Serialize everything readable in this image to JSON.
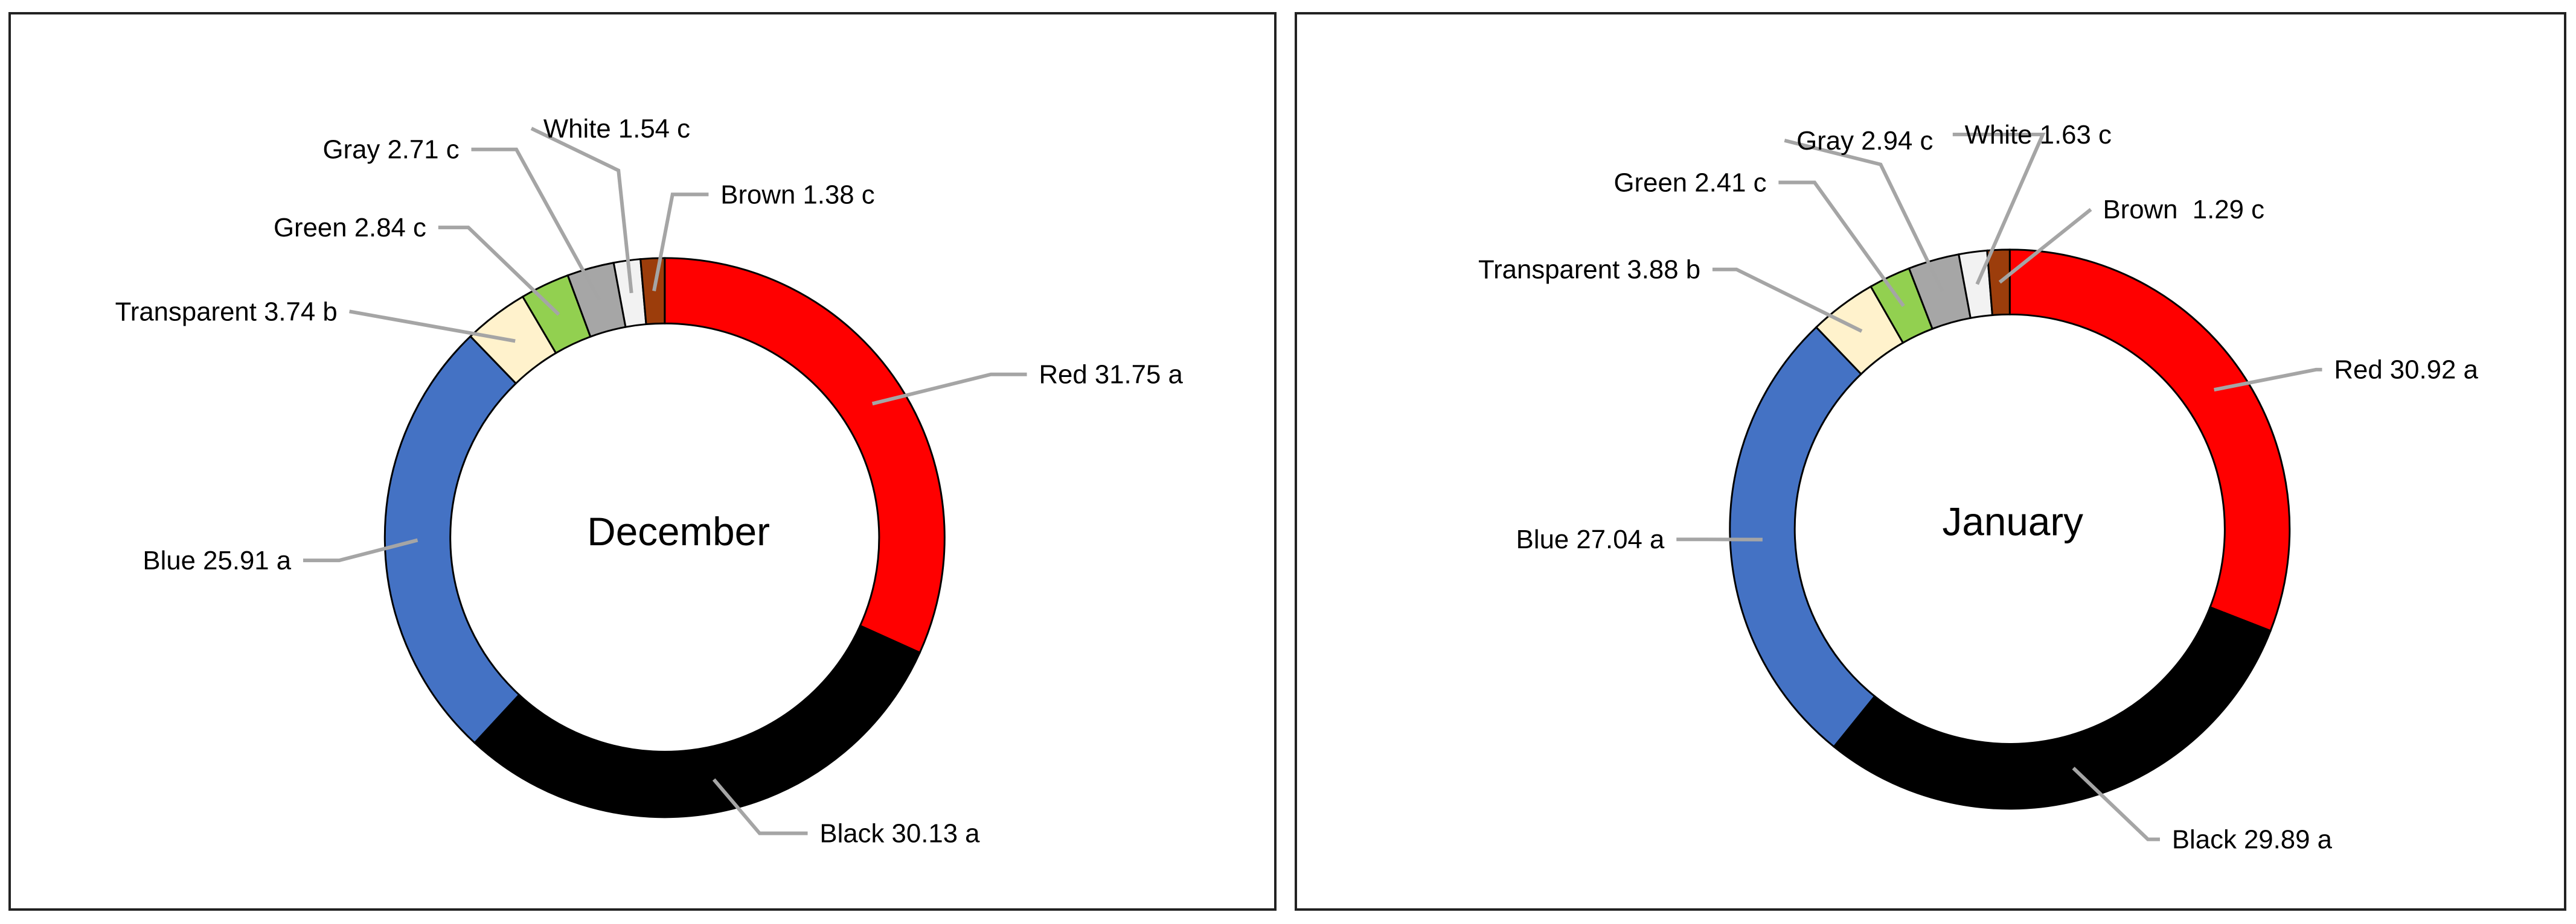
{
  "chart_data": [
    {
      "type": "donut",
      "title": "December",
      "slices": [
        {
          "name": "Red",
          "value": 31.75,
          "letter": "a",
          "label": "Red 31.75 a",
          "color": "#ff0000"
        },
        {
          "name": "Black",
          "value": 30.13,
          "letter": "a",
          "label": "Black 30.13 a",
          "color": "#000000"
        },
        {
          "name": "Blue",
          "value": 25.91,
          "letter": "a",
          "label": "Blue 25.91 a",
          "color": "#4472c4"
        },
        {
          "name": "Transparent",
          "value": 3.74,
          "letter": "b",
          "label": "Transparent 3.74 b",
          "color": "#fff2cc"
        },
        {
          "name": "Green",
          "value": 2.84,
          "letter": "c",
          "label": "Green 2.84 c",
          "color": "#92d050"
        },
        {
          "name": "Gray",
          "value": 2.71,
          "letter": "c",
          "label": "Gray 2.71 c",
          "color": "#a6a6a6"
        },
        {
          "name": "White",
          "value": 1.54,
          "letter": "c",
          "label": "White 1.54 c",
          "color": "#f2f2f2"
        },
        {
          "name": "Brown",
          "value": 1.38,
          "letter": "c",
          "label": "Brown 1.38 c",
          "color": "#9c3d0b"
        }
      ]
    },
    {
      "type": "donut",
      "title": "January",
      "slices": [
        {
          "name": "Red",
          "value": 30.92,
          "letter": "a",
          "label": "Red 30.92 a",
          "color": "#ff0000"
        },
        {
          "name": "Black",
          "value": 29.89,
          "letter": "a",
          "label": "Black 29.89 a",
          "color": "#000000"
        },
        {
          "name": "Blue",
          "value": 27.04,
          "letter": "a",
          "label": "Blue 27.04 a",
          "color": "#4472c4"
        },
        {
          "name": "Transparent",
          "value": 3.88,
          "letter": "b",
          "label": "Transparent 3.88 b",
          "color": "#fff2cc"
        },
        {
          "name": "Green",
          "value": 2.41,
          "letter": "c",
          "label": "Green 2.41 c",
          "color": "#92d050"
        },
        {
          "name": "Gray",
          "value": 2.94,
          "letter": "c",
          "label": "Gray 2.94 c",
          "color": "#a6a6a6"
        },
        {
          "name": "White",
          "value": 1.63,
          "letter": "c",
          "label": "White 1.63 c",
          "color": "#f2f2f2"
        },
        {
          "name": "Brown",
          "value": 1.29,
          "letter": "c",
          "label": "Brown  1.29 c",
          "color": "#9c3d0b"
        }
      ]
    }
  ]
}
